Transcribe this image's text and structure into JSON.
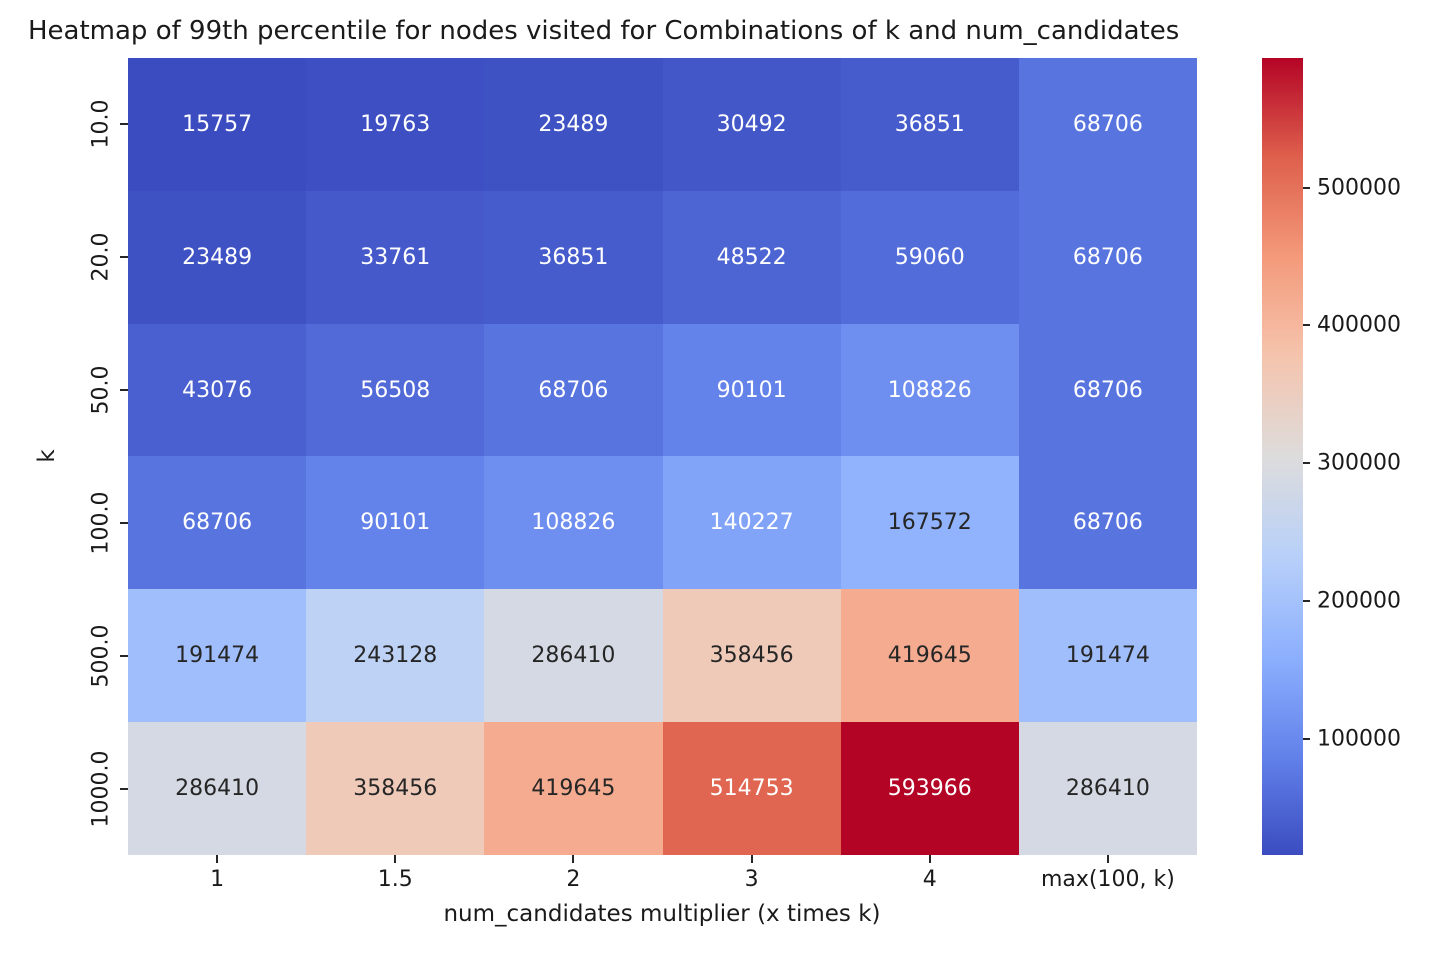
{
  "chart_data": {
    "type": "heatmap",
    "title": "Heatmap of 99th percentile for nodes visited for Combinations of k and num_candidates",
    "xlabel": "num_candidates multiplier (x times k)",
    "ylabel": "k",
    "x_categories": [
      "1",
      "1.5",
      "2",
      "3",
      "4",
      "max(100, k)"
    ],
    "y_categories": [
      "10.0",
      "20.0",
      "50.0",
      "100.0",
      "500.0",
      "1000.0"
    ],
    "values": [
      [
        15757,
        19763,
        23489,
        30492,
        36851,
        68706
      ],
      [
        23489,
        33761,
        36851,
        48522,
        59060,
        68706
      ],
      [
        43076,
        56508,
        68706,
        90101,
        108826,
        68706
      ],
      [
        68706,
        90101,
        108826,
        140227,
        167572,
        68706
      ],
      [
        191474,
        243128,
        286410,
        358456,
        419645,
        191474
      ],
      [
        286410,
        358456,
        419645,
        514753,
        593966,
        286410
      ]
    ],
    "vmin": 15757,
    "vmax": 593966,
    "colormap": {
      "name": "coolwarm",
      "anchors": [
        "#3B4CC0",
        "#6282EA",
        "#8DB0FE",
        "#B8D0F9",
        "#DDDCDC",
        "#F5C4AD",
        "#F49A7B",
        "#DE604D",
        "#B40426"
      ]
    },
    "colorbar_ticks": [
      100000,
      200000,
      300000,
      400000,
      500000
    ],
    "colorbar_tick_labels": [
      "100000",
      "200000",
      "300000",
      "400000",
      "500000"
    ],
    "annotation_colors": {
      "light": "#FFFFFF",
      "dark": "#262626"
    },
    "grid": false,
    "legend_position": "right-colorbar"
  }
}
